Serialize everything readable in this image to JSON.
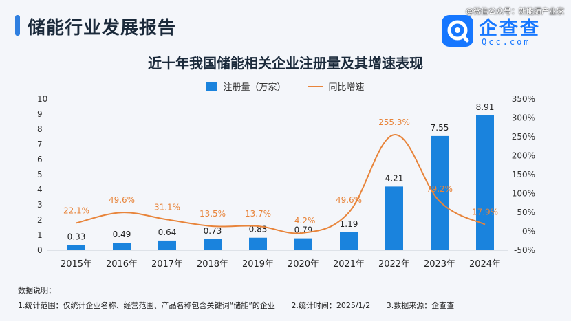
{
  "header": {
    "title": "储能行业发展报告",
    "watermark": "@微信公众号：新能源产业家"
  },
  "brand": {
    "name_cn": "企查查",
    "name_en": "Qcc.com",
    "color": "#1677ff"
  },
  "chart_data": {
    "type": "bar",
    "title": "近十年我国储能相关企业注册量及其增速表现",
    "categories": [
      "2015年",
      "2016年",
      "2017年",
      "2018年",
      "2019年",
      "2020年",
      "2021年",
      "2022年",
      "2023年",
      "2024年"
    ],
    "series": [
      {
        "name": "注册量（万家）",
        "type": "bar",
        "axis": "left",
        "color": "#1a83dd",
        "values": [
          0.33,
          0.49,
          0.64,
          0.73,
          0.83,
          0.79,
          1.19,
          4.21,
          7.55,
          8.91
        ],
        "labels": [
          "0.33",
          "0.49",
          "0.64",
          "0.73",
          "0.83",
          "0.79",
          "1.19",
          "4.21",
          "7.55",
          "8.91"
        ]
      },
      {
        "name": "同比增速",
        "type": "line",
        "axis": "right",
        "color": "#e8843a",
        "values": [
          22.1,
          49.6,
          31.1,
          13.5,
          13.7,
          -4.2,
          49.6,
          255.3,
          79.2,
          17.9
        ],
        "labels": [
          "22.1%",
          "49.6%",
          "31.1%",
          "13.5%",
          "13.7%",
          "-4.2%",
          "49.6%",
          "255.3%",
          "79.2%",
          "17.9%"
        ]
      }
    ],
    "y_left": {
      "range": [
        0,
        10
      ],
      "ticks": [
        "0",
        "1",
        "2",
        "3",
        "4",
        "5",
        "6",
        "7",
        "8",
        "9",
        "10"
      ]
    },
    "y_right": {
      "range": [
        -50,
        350
      ],
      "ticks": [
        "-50%",
        "0%",
        "50%",
        "100%",
        "150%",
        "200%",
        "250%",
        "300%",
        "350%"
      ]
    },
    "grid": false,
    "legend_position": "top-center",
    "smooth_line": true
  },
  "notes": {
    "heading": "数据说明：",
    "items": [
      "1.统计范围：仅统计企业名称、经营范围、产品名称包含关键词“储能”的企业",
      "2.统计时间：2025/1/2",
      "3.数据来源：企查查"
    ]
  }
}
